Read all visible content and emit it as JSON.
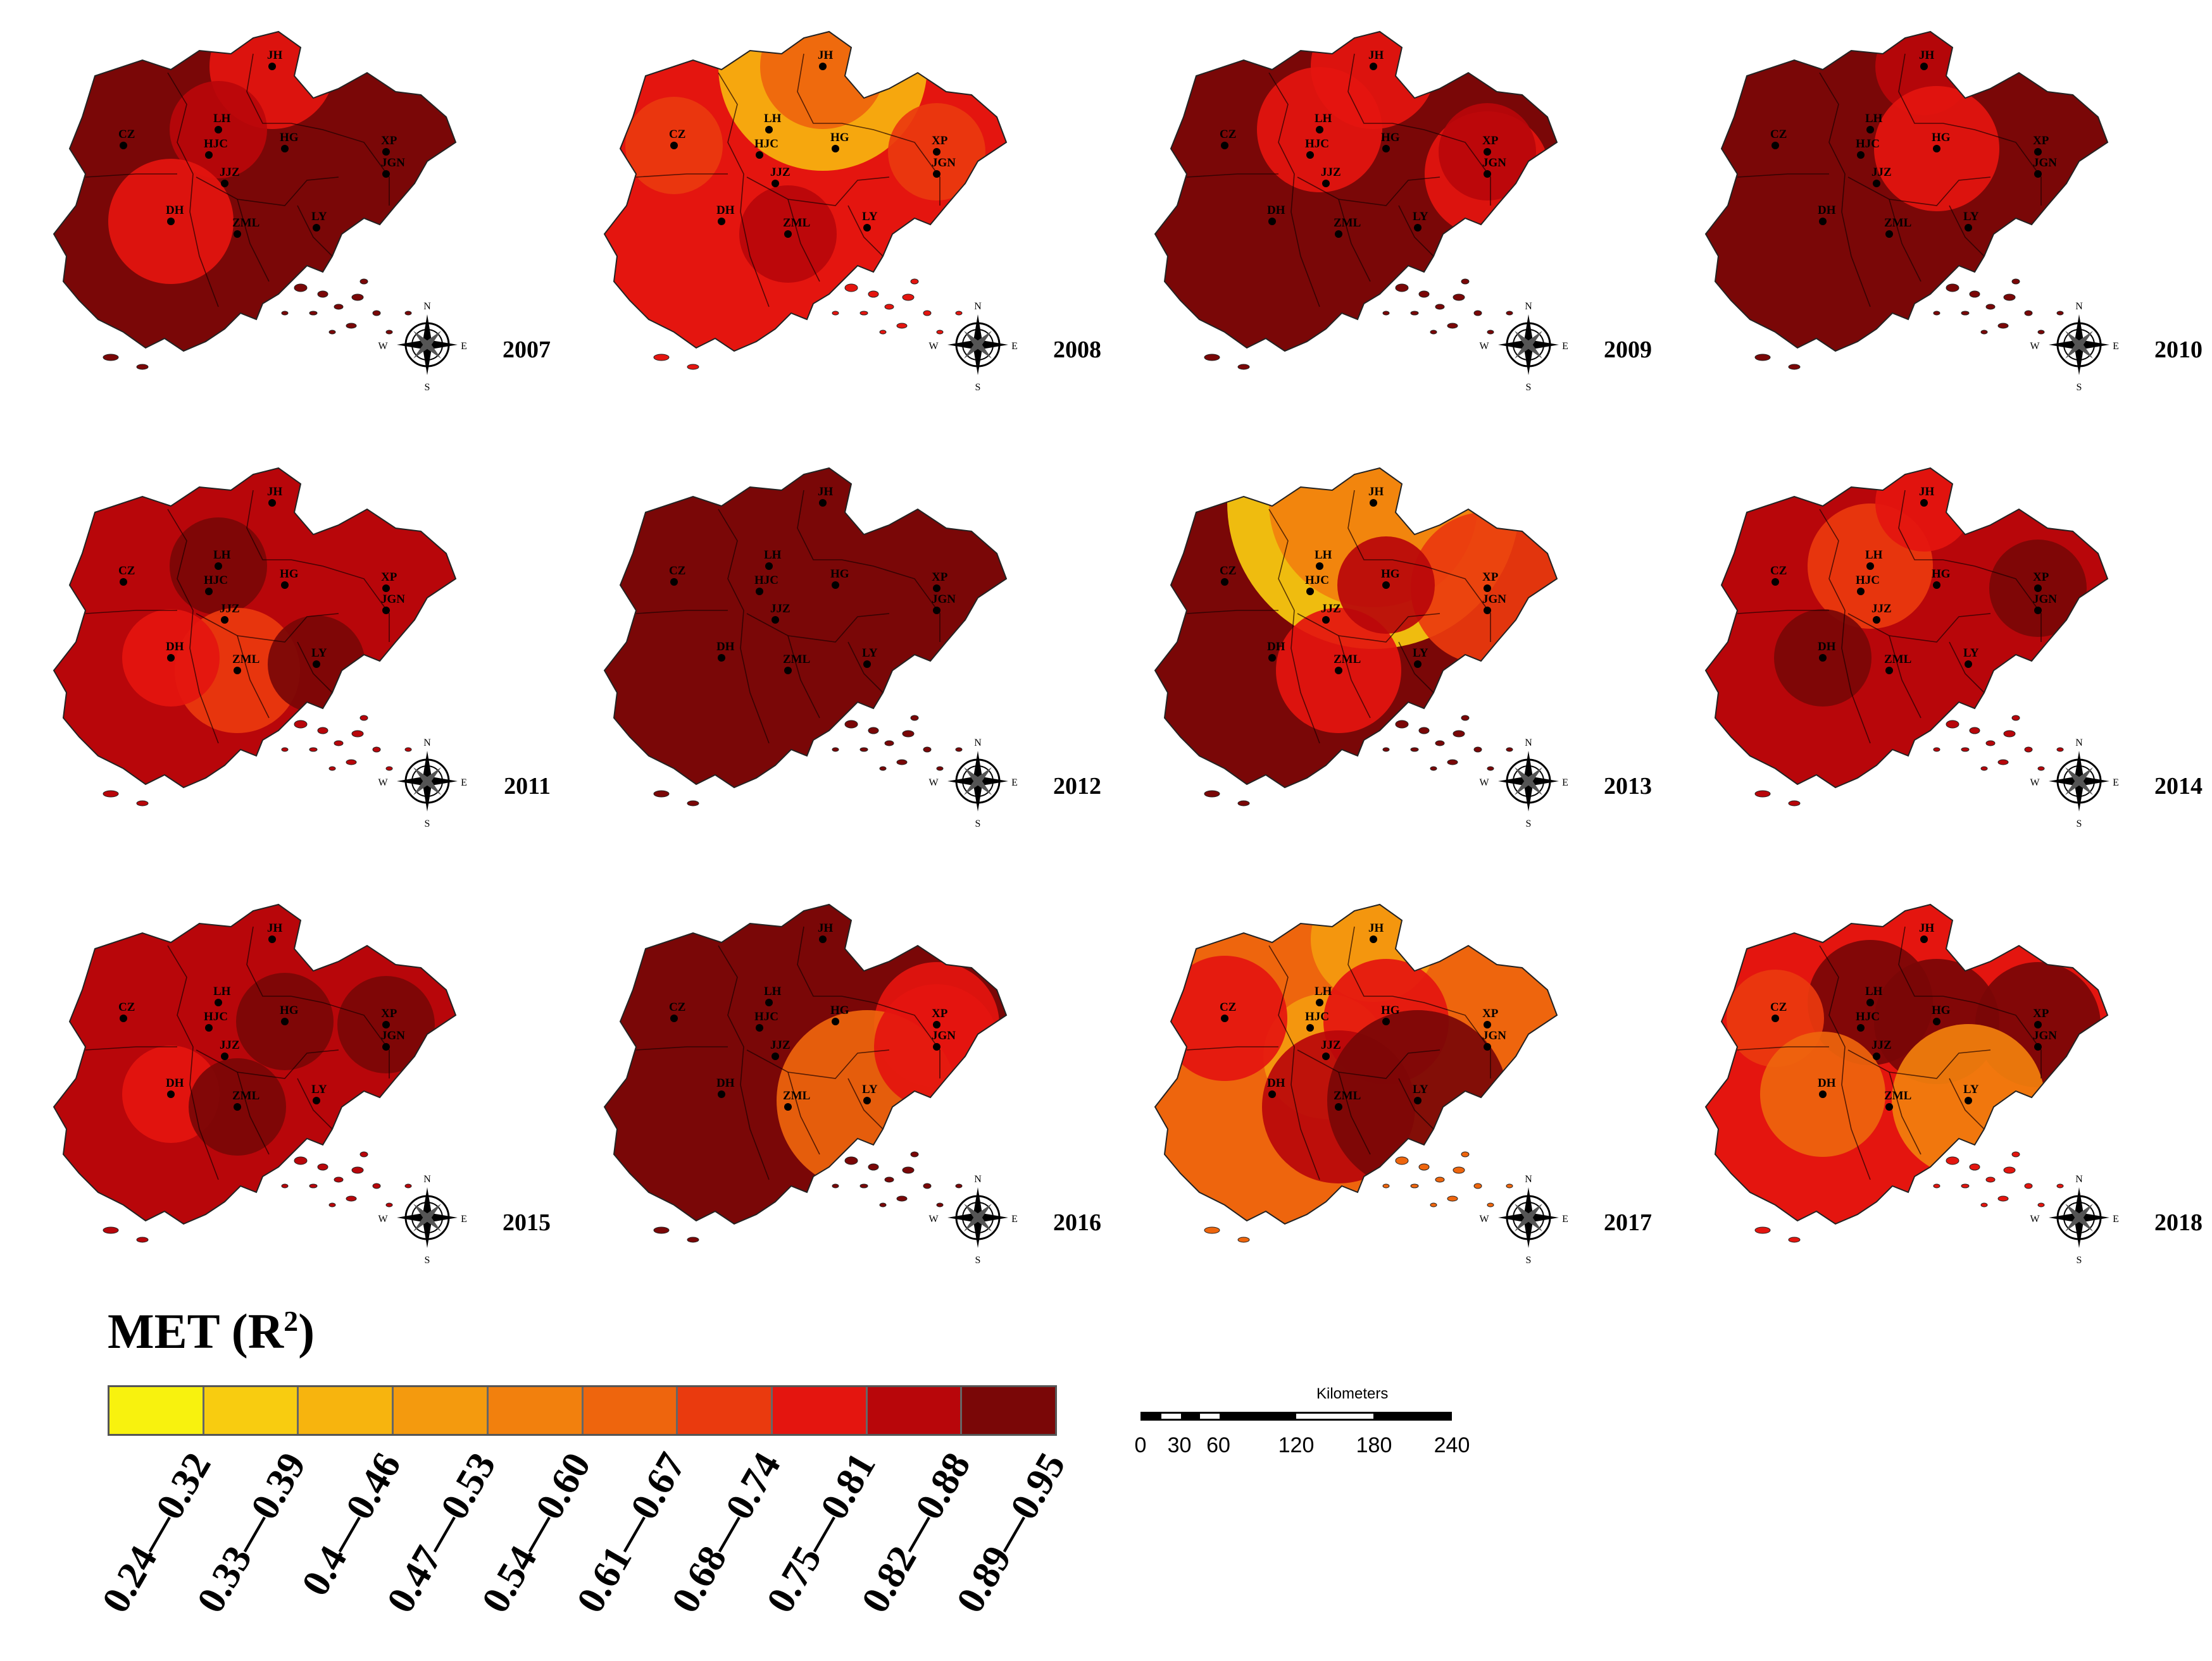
{
  "figure": {
    "legend_title": "MET (R",
    "legend_title_sup": "2",
    "legend_title_close": ")",
    "classes": [
      {
        "range": "0.24—0.32",
        "color": "#f8f20e"
      },
      {
        "range": "0.33—0.39",
        "color": "#f8cc10"
      },
      {
        "range": "0.4—0.46",
        "color": "#f7b40e"
      },
      {
        "range": "0.47—0.53",
        "color": "#f49a0e"
      },
      {
        "range": "0.54—0.60",
        "color": "#f2800d"
      },
      {
        "range": "0.61—0.67",
        "color": "#ee650d"
      },
      {
        "range": "0.68—0.74",
        "color": "#ea3a0e"
      },
      {
        "range": "0.75—0.81",
        "color": "#e4150f"
      },
      {
        "range": "0.82—0.88",
        "color": "#b8060a"
      },
      {
        "range": "0.89—0.95",
        "color": "#7a0707"
      }
    ],
    "scalebar": {
      "units": "Kilometers",
      "ticks": [
        "0",
        "30",
        "60",
        "120",
        "180",
        "240"
      ]
    },
    "compass": {
      "n": "N",
      "s": "S",
      "e": "E",
      "w": "W"
    }
  },
  "stations": [
    "JH",
    "CZ",
    "LH",
    "HJC",
    "HG",
    "XP",
    "JGN",
    "JJZ",
    "DH",
    "ZML",
    "LY"
  ],
  "panels": [
    {
      "year": "2007",
      "base_class": 9,
      "hotspots": [
        {
          "station": "JH",
          "cls": 7
        },
        {
          "station": "LH",
          "cls": 8
        },
        {
          "station": "DH",
          "cls": 7
        }
      ]
    },
    {
      "year": "2008",
      "base_class": 7,
      "hotspots": [
        {
          "station": "JH",
          "cls": 2
        },
        {
          "station": "JH",
          "cls": 5
        },
        {
          "station": "XP",
          "cls": 6
        },
        {
          "station": "CZ",
          "cls": 6
        },
        {
          "station": "ZML",
          "cls": 8
        }
      ]
    },
    {
      "year": "2009",
      "base_class": 9,
      "hotspots": [
        {
          "station": "JH",
          "cls": 7
        },
        {
          "station": "LH",
          "cls": 7
        },
        {
          "station": "JGN",
          "cls": 7
        },
        {
          "station": "XP",
          "cls": 8
        }
      ]
    },
    {
      "year": "2010",
      "base_class": 9,
      "hotspots": [
        {
          "station": "JH",
          "cls": 8
        },
        {
          "station": "HG",
          "cls": 7
        }
      ]
    },
    {
      "year": "2011",
      "base_class": 8,
      "hotspots": [
        {
          "station": "LH",
          "cls": 9
        },
        {
          "station": "ZML",
          "cls": 6
        },
        {
          "station": "LY",
          "cls": 9
        },
        {
          "station": "DH",
          "cls": 7
        }
      ]
    },
    {
      "year": "2012",
      "base_class": 9,
      "hotspots": []
    },
    {
      "year": "2013",
      "base_class": 9,
      "hotspots": [
        {
          "station": "JH",
          "cls": 1
        },
        {
          "station": "JH",
          "cls": 4
        },
        {
          "station": "XP",
          "cls": 6
        },
        {
          "station": "ZML",
          "cls": 7
        },
        {
          "station": "HG",
          "cls": 8
        }
      ]
    },
    {
      "year": "2014",
      "base_class": 8,
      "hotspots": [
        {
          "station": "LH",
          "cls": 6
        },
        {
          "station": "XP",
          "cls": 9
        },
        {
          "station": "DH",
          "cls": 9
        },
        {
          "station": "JH",
          "cls": 7
        }
      ]
    },
    {
      "year": "2015",
      "base_class": 8,
      "hotspots": [
        {
          "station": "HG",
          "cls": 9
        },
        {
          "station": "XP",
          "cls": 9
        },
        {
          "station": "DH",
          "cls": 7
        },
        {
          "station": "ZML",
          "cls": 9
        }
      ]
    },
    {
      "year": "2016",
      "base_class": 9,
      "hotspots": [
        {
          "station": "XP",
          "cls": 7
        },
        {
          "station": "LY",
          "cls": 5
        },
        {
          "station": "JGN",
          "cls": 7
        }
      ]
    },
    {
      "year": "2017",
      "base_class": 5,
      "hotspots": [
        {
          "station": "JH",
          "cls": 3
        },
        {
          "station": "JJZ",
          "cls": 3
        },
        {
          "station": "CZ",
          "cls": 7
        },
        {
          "station": "HG",
          "cls": 7
        },
        {
          "station": "ZML",
          "cls": 8
        },
        {
          "station": "LY",
          "cls": 9
        }
      ]
    },
    {
      "year": "2018",
      "base_class": 7,
      "hotspots": [
        {
          "station": "LH",
          "cls": 9
        },
        {
          "station": "HG",
          "cls": 9
        },
        {
          "station": "XP",
          "cls": 9
        },
        {
          "station": "CZ",
          "cls": 6
        },
        {
          "station": "DH",
          "cls": 5
        },
        {
          "station": "LY",
          "cls": 4
        }
      ]
    }
  ]
}
